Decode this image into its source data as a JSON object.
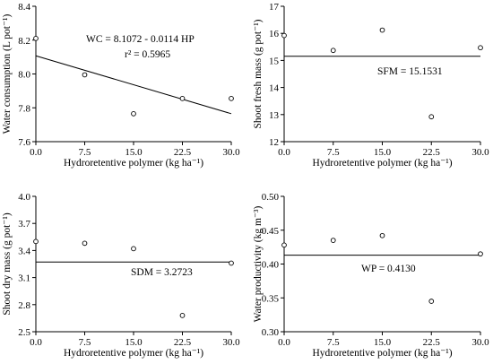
{
  "chart_data": [
    {
      "type": "scatter",
      "xlabel": "Hydroretentive polymer (kg ha⁻¹)",
      "ylabel": "Water consumption (L pot⁻¹)",
      "xlim": [
        0,
        30
      ],
      "ylim": [
        7.6,
        8.4
      ],
      "xticks": [
        "0.0",
        "7.5",
        "15.0",
        "22.5",
        "30.0"
      ],
      "yticks": [
        "7.6",
        "7.8",
        "8.0",
        "8.2",
        "8.4"
      ],
      "x": [
        0,
        7.5,
        15,
        22.5,
        30
      ],
      "y": [
        8.21,
        7.995,
        7.765,
        7.855,
        7.855
      ],
      "fit": {
        "type": "linear",
        "intercept": 8.1072,
        "slope": -0.0114
      },
      "annotations": [
        "WC = 8.1072 - 0.0114 HP",
        "r² = 0.5965"
      ]
    },
    {
      "type": "scatter",
      "xlabel": "Hydroretentive polymer (kg ha⁻¹)",
      "ylabel": "Shoot fresh mass (g pot⁻¹)",
      "xlim": [
        0,
        30
      ],
      "ylim": [
        12,
        17
      ],
      "xticks": [
        "0.0",
        "7.5",
        "15.0",
        "22.5",
        "30.0"
      ],
      "yticks": [
        "12",
        "13",
        "14",
        "15",
        "16",
        "17"
      ],
      "x": [
        0,
        7.5,
        15,
        22.5,
        30
      ],
      "y": [
        15.92,
        15.37,
        16.12,
        12.92,
        15.47
      ],
      "fit": {
        "type": "constant",
        "value": 15.1531
      },
      "annotations": [
        "SFM = 15.1531"
      ]
    },
    {
      "type": "scatter",
      "xlabel": "Hydroretentive polymer (kg ha⁻¹)",
      "ylabel": "Shoot dry mass (g pot⁻¹)",
      "xlim": [
        0,
        30
      ],
      "ylim": [
        2.5,
        4.0
      ],
      "xticks": [
        "0.0",
        "7.5",
        "15.0",
        "22.5",
        "30.0"
      ],
      "yticks": [
        "2.5",
        "2.8",
        "3.1",
        "3.4",
        "3.7",
        "4.0"
      ],
      "x": [
        0,
        7.5,
        15,
        22.5,
        30
      ],
      "y": [
        3.5,
        3.48,
        3.42,
        2.68,
        3.26
      ],
      "fit": {
        "type": "constant",
        "value": 3.2723
      },
      "annotations": [
        "SDM = 3.2723"
      ]
    },
    {
      "type": "scatter",
      "xlabel": "Hydroretentive polymer (kg ha⁻¹)",
      "ylabel": "Water productivity (kg m⁻³)",
      "xlim": [
        0,
        30
      ],
      "ylim": [
        0.3,
        0.5
      ],
      "xticks": [
        "0.0",
        "7.5",
        "15.0",
        "22.5",
        "30.0"
      ],
      "yticks": [
        "0.30",
        "0.35",
        "0.40",
        "0.45",
        "0.50"
      ],
      "x": [
        0,
        7.5,
        15,
        22.5,
        30
      ],
      "y": [
        0.428,
        0.435,
        0.442,
        0.345,
        0.415
      ],
      "fit": {
        "type": "constant",
        "value": 0.413
      },
      "annotations": [
        "WP = 0.4130"
      ]
    }
  ]
}
